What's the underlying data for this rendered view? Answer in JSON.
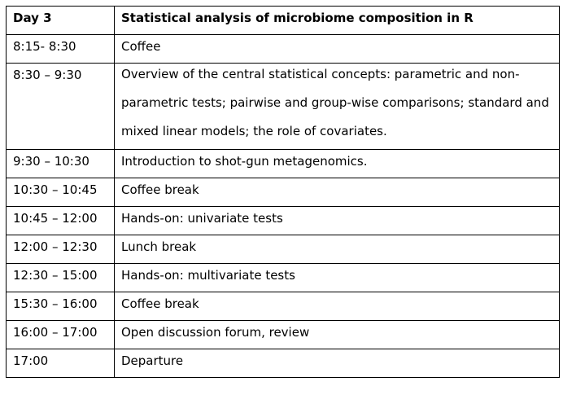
{
  "header": {
    "day": "Day 3",
    "title": "Statistical analysis of microbiome composition in R"
  },
  "rows": [
    {
      "time": "8:15- 8:30",
      "activity": "Coffee"
    },
    {
      "time": "8:30 – 9:30",
      "activity": "Overview of the central statistical concepts: parametric and non-parametric tests; pairwise and group-wise comparisons; standard and mixed linear models; the role of covariates."
    },
    {
      "time": "9:30 – 10:30",
      "activity": "Introduction to shot-gun metagenomics."
    },
    {
      "time": "10:30 – 10:45",
      "activity": "Coffee break"
    },
    {
      "time": "10:45 – 12:00",
      "activity": "Hands-on: univariate tests"
    },
    {
      "time": "12:00 – 12:30",
      "activity": "Lunch break"
    },
    {
      "time": "12:30 – 15:00",
      "activity": "Hands-on: multivariate tests"
    },
    {
      "time": "15:30 – 16:00",
      "activity": "Coffee break"
    },
    {
      "time": "16:00 – 17:00",
      "activity": "Open discussion forum, review"
    },
    {
      "time": "17:00",
      "activity": "Departure"
    }
  ]
}
